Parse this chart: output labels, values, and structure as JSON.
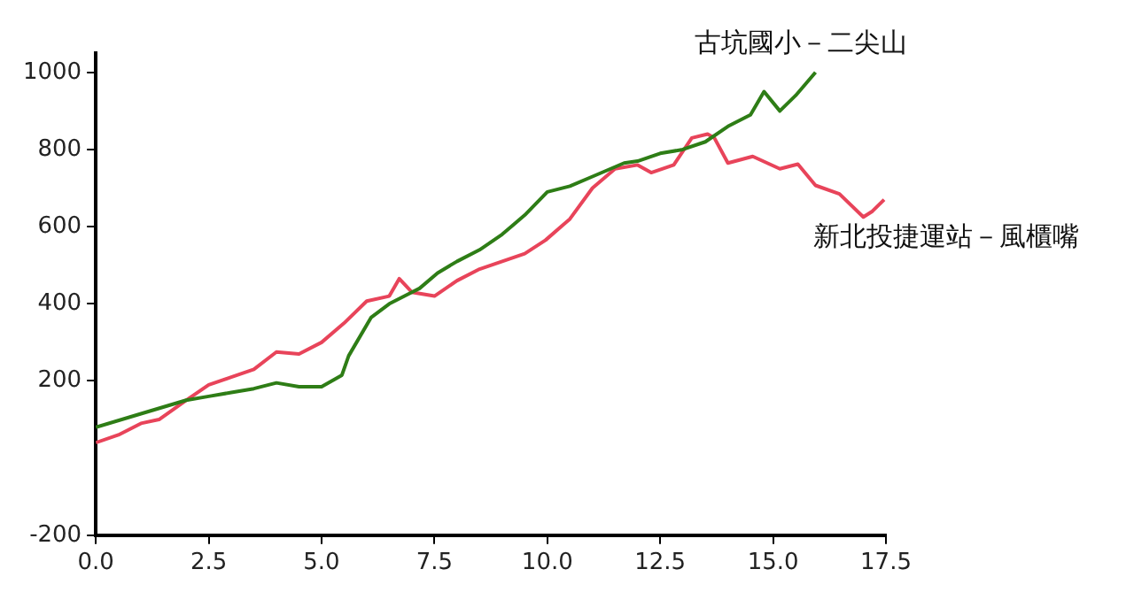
{
  "chart_data": {
    "type": "line",
    "xlim": [
      0,
      17.5
    ],
    "ylim": [
      -200,
      1050
    ],
    "xticks": [
      {
        "value": 0,
        "label": "0.0"
      },
      {
        "value": 2.5,
        "label": "2.5"
      },
      {
        "value": 5,
        "label": "5.0"
      },
      {
        "value": 7.5,
        "label": "7.5"
      },
      {
        "value": 10,
        "label": "10.0"
      },
      {
        "value": 12.5,
        "label": "12.5"
      },
      {
        "value": 15,
        "label": "15.0"
      },
      {
        "value": 17.5,
        "label": "17.5"
      }
    ],
    "yticks": [
      -200,
      200,
      400,
      600,
      800,
      1000
    ],
    "grid": false,
    "legend": false,
    "marker": "none",
    "line_style": "solid",
    "series": [
      {
        "name": "古坑國小－二尖山",
        "color": "#2e7d16",
        "x": [
          0,
          1,
          2,
          2.5,
          3,
          3.5,
          4,
          4.5,
          5,
          5.45,
          5.6,
          6.1,
          6.5,
          7,
          7.17,
          7.57,
          8,
          8.5,
          9,
          9.5,
          10,
          10.5,
          11,
          11.7,
          12,
          12.5,
          13,
          13.5,
          14,
          14.5,
          14.8,
          15.15,
          15.5,
          15.94
        ],
        "values": [
          80,
          115,
          150,
          160,
          170,
          180,
          195,
          185,
          185,
          215,
          265,
          365,
          400,
          430,
          440,
          480,
          510,
          540,
          580,
          630,
          690,
          705,
          730,
          765,
          770,
          790,
          800,
          820,
          860,
          890,
          950,
          900,
          940,
          1000
        ]
      },
      {
        "name": "新北投捷運站－風櫃嘴",
        "color": "#e8445a",
        "x": [
          0,
          0.5,
          1,
          1.4,
          2,
          2.5,
          3,
          3.5,
          4,
          4.5,
          5,
          5.5,
          6,
          6.5,
          6.72,
          7,
          7.5,
          8,
          8.5,
          9,
          9.5,
          9.96,
          10.5,
          11,
          11.5,
          12,
          12.3,
          12.8,
          13.2,
          13.55,
          13.7,
          14,
          14.55,
          15.15,
          15.55,
          15.94,
          16.47,
          17,
          17.2,
          17.46
        ],
        "values": [
          40,
          60,
          90,
          100,
          150,
          190,
          210,
          230,
          275,
          270,
          300,
          350,
          407,
          420,
          465,
          430,
          420,
          460,
          490,
          510,
          530,
          565,
          620,
          700,
          750,
          760,
          740,
          760,
          830,
          840,
          830,
          765,
          782,
          750,
          762,
          707,
          685,
          625,
          640,
          670
        ]
      }
    ]
  }
}
